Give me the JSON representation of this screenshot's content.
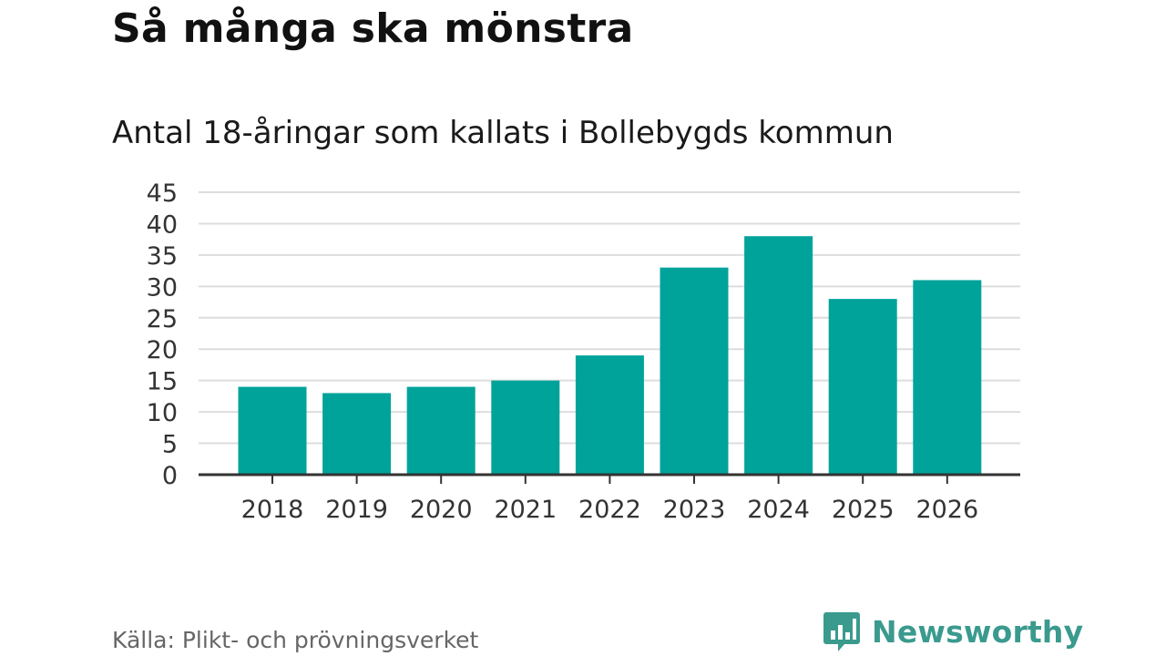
{
  "title": "Så många ska mönstra",
  "subtitle": "Antal 18-åringar som kallats i Bollebygds kommun",
  "source": "Källa: Plikt- och prövningsverket",
  "brand": {
    "name": "Newsworthy",
    "icon": "newsworthy-logo-icon",
    "color": "#3a9a8e"
  },
  "chart_data": {
    "type": "bar",
    "categories": [
      "2018",
      "2019",
      "2020",
      "2021",
      "2022",
      "2023",
      "2024",
      "2025",
      "2026"
    ],
    "values": [
      14,
      13,
      14,
      15,
      19,
      33,
      38,
      28,
      31
    ],
    "ylim": [
      0,
      45
    ],
    "yticks": [
      0,
      5,
      10,
      15,
      20,
      25,
      30,
      35,
      40,
      45
    ],
    "grid": true,
    "bar_color": "#00a39a"
  }
}
